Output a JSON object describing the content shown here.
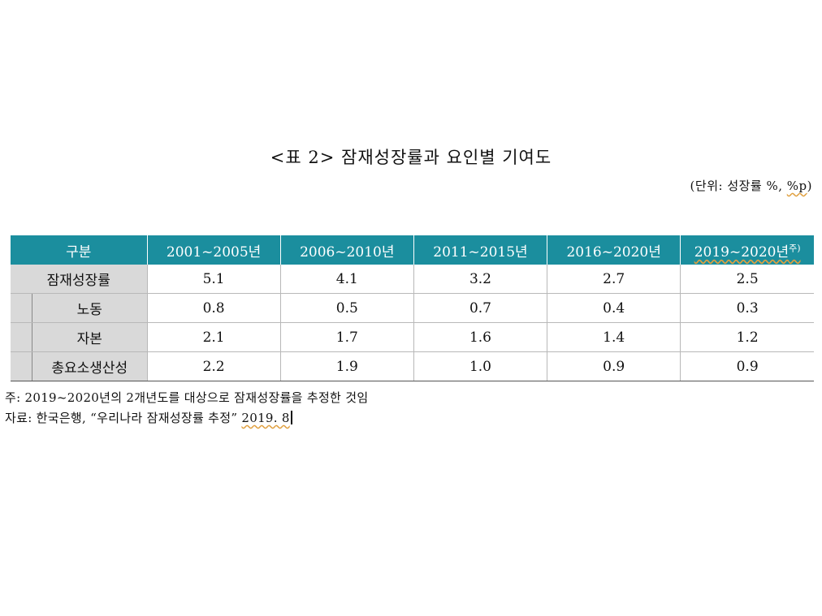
{
  "title": "<표 2> 잠재성장률과 요인별 기여도",
  "unit": {
    "prefix": "(단위: 성장률 %, ",
    "highlight": "%p",
    "suffix": ")"
  },
  "table": {
    "header_label": "구분",
    "columns": [
      "2001~2005년",
      "2006~2010년",
      "2011~2015년",
      "2016~2020년"
    ],
    "last_column": "2019~2020년",
    "last_column_sup": "주)",
    "rows": [
      {
        "label": "잠재성장률",
        "values": [
          "5.1",
          "4.1",
          "3.2",
          "2.7",
          "2.5"
        ]
      },
      {
        "label": "노동",
        "values": [
          "0.8",
          "0.5",
          "0.7",
          "0.4",
          "0.3"
        ]
      },
      {
        "label": "자본",
        "values": [
          "2.1",
          "1.7",
          "1.6",
          "1.4",
          "1.2"
        ]
      },
      {
        "label": "총요소생산성",
        "values": [
          "2.2",
          "1.9",
          "1.0",
          "0.9",
          "0.9"
        ]
      }
    ]
  },
  "notes": {
    "note": "주: 2019~2020년의 2개년도를 대상으로 잠재성장률을 추정한 것임",
    "source_prefix": "자료: 한국은행, “우리나라 잠재성장률 추정” ",
    "source_date": "2019. 8"
  }
}
